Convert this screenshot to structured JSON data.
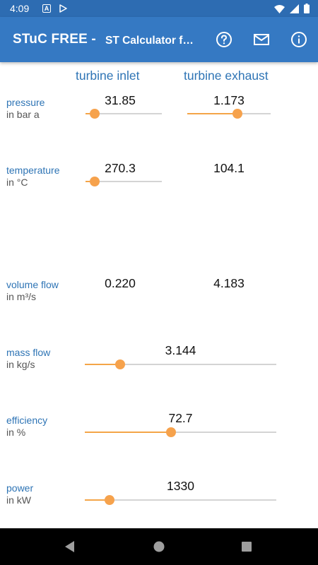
{
  "status_bar": {
    "time": "4:09",
    "notif_a": "A"
  },
  "app_bar": {
    "title": "STuC FREE -",
    "subtitle": "ST Calculator for..."
  },
  "columns": {
    "inlet": "turbine inlet",
    "exhaust": "turbine exhaust"
  },
  "rows": {
    "pressure": {
      "label": "pressure",
      "unit": "in bar a",
      "inlet_value": "31.85",
      "inlet_slider": 0.12,
      "exhaust_value": "1.173",
      "exhaust_slider": 0.6
    },
    "temperature": {
      "label": "temperature",
      "unit": "in °C",
      "inlet_value": "270.3",
      "inlet_slider": 0.12,
      "exhaust_value": "104.1"
    },
    "volume_flow": {
      "label": "volume flow",
      "unit": "in m³/s",
      "inlet_value": "0.220",
      "exhaust_value": "4.183"
    },
    "mass_flow": {
      "label": "mass flow",
      "unit": "in kg/s",
      "value": "3.144",
      "slider": 0.185
    },
    "efficiency": {
      "label": "efficiency",
      "unit": "in %",
      "value": "72.7",
      "slider": 0.45
    },
    "power": {
      "label": "power",
      "unit": "in kW",
      "value": "1330",
      "slider": 0.13
    }
  },
  "colors": {
    "status_bar": "#2d6cb2",
    "app_bar": "#3579c3",
    "label_blue": "#2e74b5",
    "slider_accent": "#f6a24c",
    "nav_bar": "#000000"
  }
}
